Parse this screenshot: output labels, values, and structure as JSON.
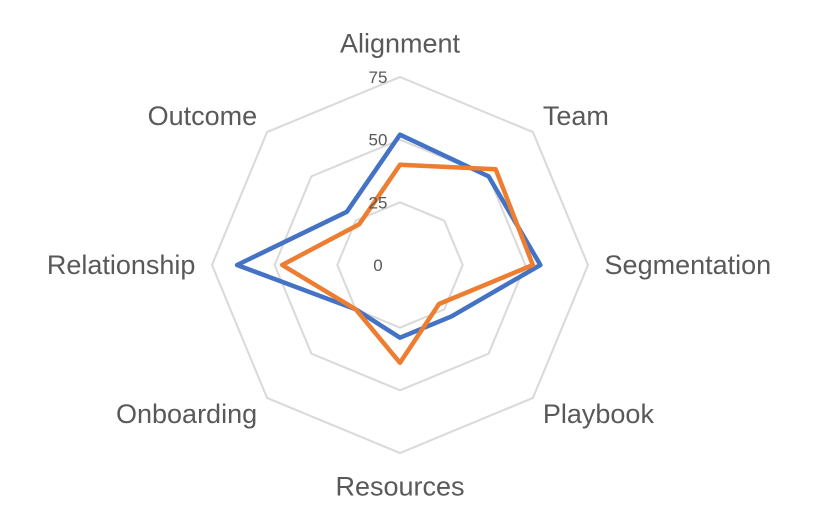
{
  "chart_data": {
    "type": "radar",
    "title": "",
    "categories": [
      "Alignment",
      "Team",
      "Segmentation",
      "Playbook",
      "Resources",
      "Onboarding",
      "Relationship",
      "Outcome"
    ],
    "rlim": [
      0,
      75
    ],
    "ticks": [
      "0",
      "25",
      "50",
      "75"
    ],
    "tick_values": [
      0,
      25,
      50,
      75
    ],
    "grid": true,
    "legend": "none",
    "series": [
      {
        "color": "#4472C4",
        "values": [
          52,
          50,
          56,
          29,
          29,
          25,
          65,
          30
        ]
      },
      {
        "color": "#ED7D31",
        "values": [
          40,
          54,
          53,
          22,
          39,
          25,
          47,
          23
        ]
      }
    ]
  }
}
